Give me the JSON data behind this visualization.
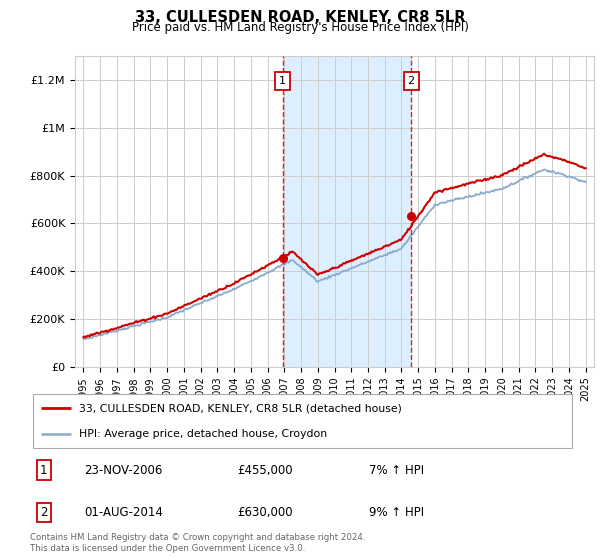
{
  "title": "33, CULLESDEN ROAD, KENLEY, CR8 5LR",
  "subtitle": "Price paid vs. HM Land Registry's House Price Index (HPI)",
  "footer": "Contains HM Land Registry data © Crown copyright and database right 2024.\nThis data is licensed under the Open Government Licence v3.0.",
  "legend_line1": "33, CULLESDEN ROAD, KENLEY, CR8 5LR (detached house)",
  "legend_line2": "HPI: Average price, detached house, Croydon",
  "sale1_date": "23-NOV-2006",
  "sale1_price": "£455,000",
  "sale1_hpi": "7% ↑ HPI",
  "sale1_year": 2006.9,
  "sale1_value": 455000,
  "sale2_date": "01-AUG-2014",
  "sale2_price": "£630,000",
  "sale2_hpi": "9% ↑ HPI",
  "sale2_year": 2014.58,
  "sale2_value": 630000,
  "price_color": "#cc0000",
  "hpi_color": "#88aacc",
  "shade_color": "#ddeeff",
  "vline_color": "#dd0000",
  "bg_color": "#ffffff",
  "grid_color": "#cccccc",
  "ylim": [
    0,
    1300000
  ],
  "xlim": [
    1994.5,
    2025.5
  ],
  "yticks": [
    0,
    200000,
    400000,
    600000,
    800000,
    1000000,
    1200000
  ],
  "ytick_labels": [
    "£0",
    "£200K",
    "£400K",
    "£600K",
    "£800K",
    "£1M",
    "£1.2M"
  ]
}
